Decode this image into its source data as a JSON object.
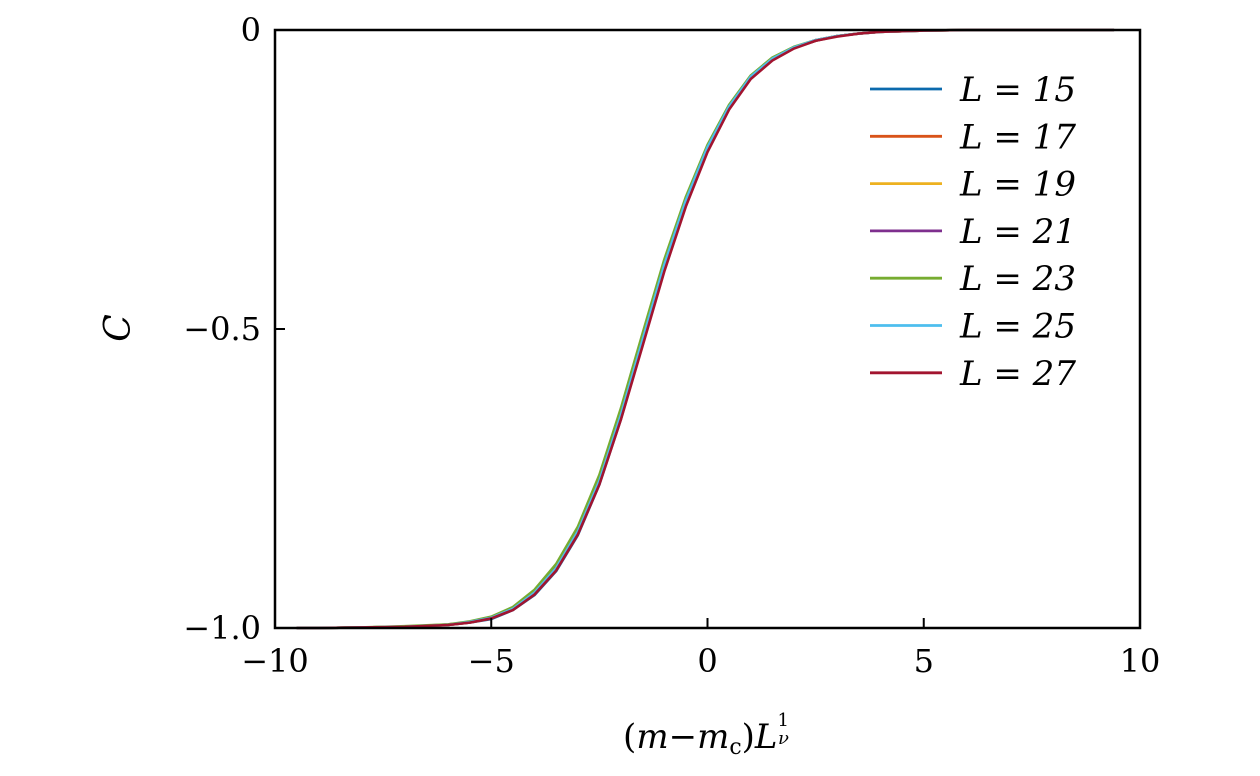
{
  "chart_data": {
    "type": "line",
    "title": "",
    "xlabel": "(m−m_c)L^(1/ν)",
    "ylabel": "C",
    "xlim": [
      -10,
      10
    ],
    "ylim": [
      -1.0,
      0
    ],
    "xticks": [
      -10,
      -5,
      0,
      5,
      10
    ],
    "xtick_labels": [
      "−10",
      "−5",
      "0",
      "5",
      "10"
    ],
    "yticks": [
      -1.0,
      -0.5,
      0
    ],
    "ytick_labels": [
      "−1.0",
      "−0.5",
      "0"
    ],
    "grid": false,
    "legend_position": "top-right",
    "series": [
      {
        "name": "L = 15",
        "color": "#0b6aad",
        "x": [
          -9.5,
          -9,
          -8,
          -7,
          -6,
          -5.5,
          -5,
          -4.5,
          -4,
          -3.5,
          -3,
          -2.5,
          -2,
          -1.5,
          -1,
          -0.5,
          0,
          0.5,
          1,
          1.5,
          2,
          2.5,
          3,
          3.5,
          4,
          5,
          6,
          7,
          8,
          9,
          9.4
        ],
        "y": [
          -1.0,
          -1.0,
          -0.999,
          -0.998,
          -0.995,
          -0.991,
          -0.985,
          -0.97,
          -0.945,
          -0.905,
          -0.845,
          -0.76,
          -0.65,
          -0.525,
          -0.4,
          -0.29,
          -0.2,
          -0.13,
          -0.08,
          -0.05,
          -0.03,
          -0.018,
          -0.01,
          -0.006,
          -0.003,
          -0.001,
          0,
          0,
          0,
          0,
          0
        ]
      },
      {
        "name": "L = 17",
        "color": "#d95319",
        "x": [
          -9.5,
          -9,
          -8,
          -7,
          -6,
          -5.5,
          -5,
          -4.5,
          -4,
          -3.5,
          -3,
          -2.5,
          -2,
          -1.5,
          -1,
          -0.5,
          0,
          0.5,
          1,
          1.5,
          2,
          2.5,
          3,
          3.5,
          4,
          5,
          6,
          7,
          8,
          9,
          9.4
        ],
        "y": [
          -1.0,
          -1.0,
          -0.999,
          -0.998,
          -0.995,
          -0.991,
          -0.984,
          -0.969,
          -0.943,
          -0.902,
          -0.842,
          -0.757,
          -0.646,
          -0.521,
          -0.396,
          -0.287,
          -0.198,
          -0.129,
          -0.079,
          -0.049,
          -0.03,
          -0.018,
          -0.01,
          -0.006,
          -0.003,
          -0.001,
          0,
          0,
          0,
          0,
          0
        ]
      },
      {
        "name": "L = 19",
        "color": "#edb120",
        "x": [
          -9.5,
          -9,
          -8,
          -7,
          -6,
          -5.5,
          -5,
          -4.5,
          -4,
          -3.5,
          -3,
          -2.5,
          -2,
          -1.5,
          -1,
          -0.5,
          0,
          0.5,
          1,
          1.5,
          2,
          2.5,
          3,
          3.5,
          4,
          5,
          6,
          7,
          8,
          9,
          9.4
        ],
        "y": [
          -1.0,
          -1.0,
          -0.999,
          -0.998,
          -0.995,
          -0.99,
          -0.983,
          -0.968,
          -0.941,
          -0.9,
          -0.839,
          -0.754,
          -0.643,
          -0.518,
          -0.393,
          -0.285,
          -0.196,
          -0.128,
          -0.078,
          -0.048,
          -0.029,
          -0.017,
          -0.01,
          -0.006,
          -0.003,
          -0.001,
          0,
          0,
          0,
          0,
          0
        ]
      },
      {
        "name": "L = 21",
        "color": "#7e2f8e",
        "x": [
          -9.5,
          -9,
          -8,
          -7,
          -6,
          -5.5,
          -5,
          -4.5,
          -4,
          -3.5,
          -3,
          -2.5,
          -2,
          -1.5,
          -1,
          -0.5,
          0,
          0.5,
          1,
          1.5,
          2,
          2.5,
          3,
          3.5,
          4,
          5,
          6,
          7,
          8,
          9,
          9.4
        ],
        "y": [
          -1.0,
          -1.0,
          -0.999,
          -0.998,
          -0.994,
          -0.99,
          -0.982,
          -0.967,
          -0.939,
          -0.897,
          -0.836,
          -0.75,
          -0.639,
          -0.514,
          -0.39,
          -0.283,
          -0.195,
          -0.127,
          -0.077,
          -0.047,
          -0.029,
          -0.017,
          -0.01,
          -0.006,
          -0.003,
          -0.001,
          0,
          0,
          0,
          0,
          0
        ]
      },
      {
        "name": "L = 23",
        "color": "#77ac30",
        "x": [
          -9.5,
          -9,
          -8,
          -7,
          -6,
          -5.5,
          -5,
          -4.5,
          -4,
          -3.5,
          -3,
          -2.5,
          -2,
          -1.5,
          -1,
          -0.5,
          0,
          0.5,
          1,
          1.5,
          2,
          2.5,
          3,
          3.5,
          4,
          5,
          6,
          7,
          8,
          9,
          9.4
        ],
        "y": [
          -1.0,
          -1.0,
          -0.999,
          -0.997,
          -0.994,
          -0.989,
          -0.981,
          -0.965,
          -0.936,
          -0.893,
          -0.831,
          -0.744,
          -0.632,
          -0.507,
          -0.384,
          -0.279,
          -0.192,
          -0.125,
          -0.076,
          -0.046,
          -0.028,
          -0.017,
          -0.01,
          -0.006,
          -0.003,
          -0.001,
          0,
          0,
          0,
          0,
          0
        ]
      },
      {
        "name": "L = 25",
        "color": "#4dbeee",
        "x": [
          -9.5,
          -9,
          -8,
          -7,
          -6,
          -5.5,
          -5,
          -4.5,
          -4,
          -3.5,
          -3,
          -2.5,
          -2,
          -1.5,
          -1,
          -0.5,
          0,
          0.5,
          1,
          1.5,
          2,
          2.5,
          3,
          3.5,
          4,
          5,
          6,
          7,
          8,
          9,
          9.4
        ],
        "y": [
          -1.0,
          -1.0,
          -0.999,
          -0.998,
          -0.995,
          -0.99,
          -0.983,
          -0.968,
          -0.941,
          -0.9,
          -0.839,
          -0.754,
          -0.643,
          -0.518,
          -0.393,
          -0.285,
          -0.196,
          -0.128,
          -0.078,
          -0.048,
          -0.029,
          -0.017,
          -0.01,
          -0.006,
          -0.003,
          -0.001,
          0,
          0,
          0,
          0,
          0
        ]
      },
      {
        "name": "L = 27",
        "color": "#a2142f",
        "x": [
          -9.5,
          -9,
          -8,
          -7,
          -6,
          -5.5,
          -5,
          -4.5,
          -4,
          -3.5,
          -3,
          -2.5,
          -2,
          -1.5,
          -1,
          -0.5,
          0,
          0.5,
          1,
          1.5,
          2,
          2.5,
          3,
          3.5,
          4,
          5,
          6,
          7,
          8,
          9,
          9.4
        ],
        "y": [
          -1.0,
          -1.0,
          -0.999,
          -0.998,
          -0.995,
          -0.991,
          -0.984,
          -0.97,
          -0.944,
          -0.904,
          -0.844,
          -0.76,
          -0.651,
          -0.528,
          -0.404,
          -0.295,
          -0.204,
          -0.133,
          -0.082,
          -0.051,
          -0.031,
          -0.018,
          -0.011,
          -0.006,
          -0.003,
          -0.001,
          0,
          0,
          0,
          0,
          0
        ]
      }
    ]
  }
}
